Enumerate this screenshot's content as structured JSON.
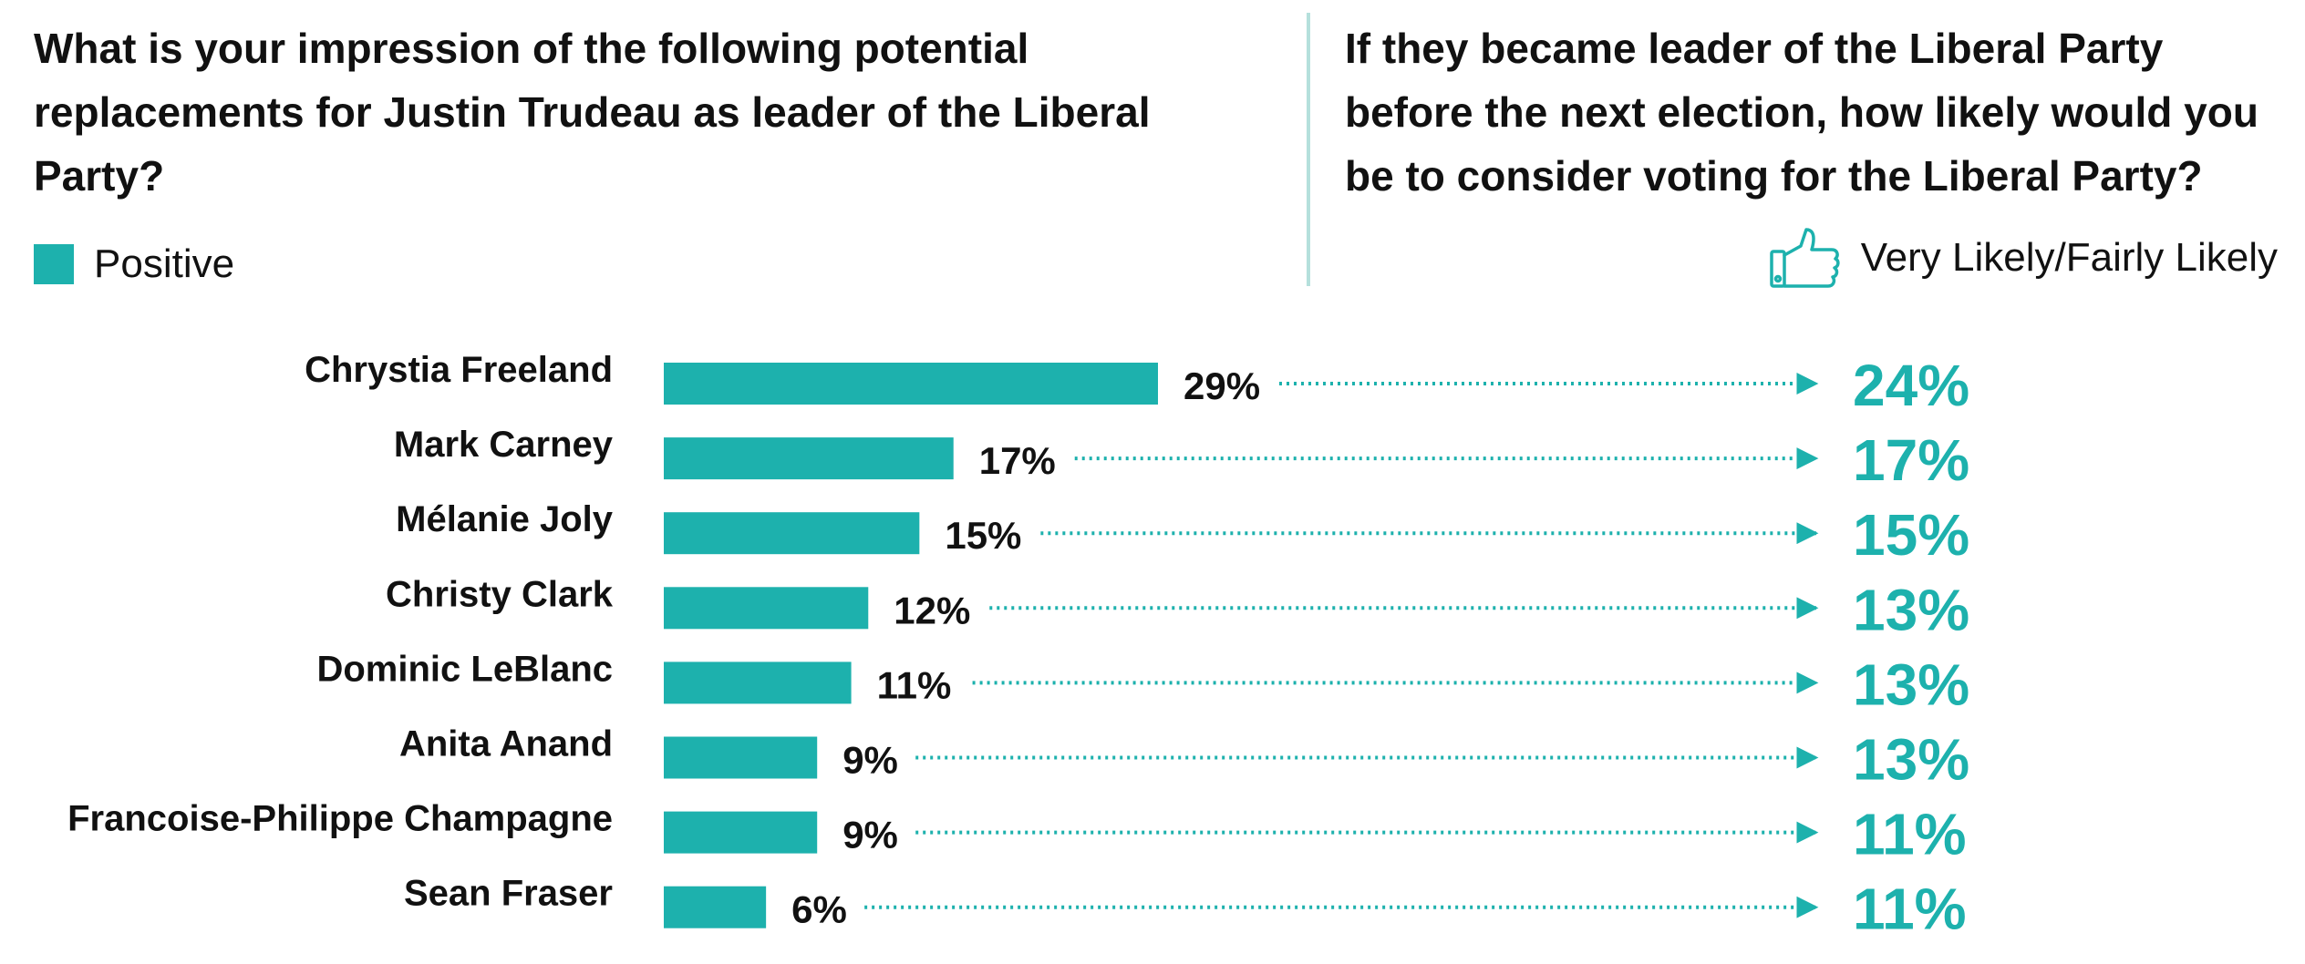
{
  "chart_data": {
    "type": "bar",
    "orientation": "horizontal",
    "left_question": "What is your impression of the following potential replacements for Justin Trudeau as leader of the Liberal Party?",
    "right_question": "If they became leader of the Liberal Party before the next election, how likely would you be to consider voting for the Liberal Party?",
    "left_legend": "Positive",
    "right_legend": "Very Likely/Fairly Likely",
    "categories": [
      "Chrystia Freeland",
      "Mark Carney",
      "Mélanie Joly",
      "Christy Clark",
      "Dominic LeBlanc",
      "Anita Anand",
      "Francoise-Philippe Champagne",
      "Sean Fraser"
    ],
    "series": [
      {
        "values": [
          29,
          17,
          15,
          12,
          11,
          9,
          9,
          6
        ]
      },
      {
        "values": [
          24,
          17,
          15,
          13,
          13,
          13,
          11,
          11
        ]
      }
    ],
    "value_suffix": "%",
    "xlim": [
      0,
      29
    ],
    "grid": false
  },
  "colors": {
    "bar": "#1db1ad",
    "accent_text": "#1db1ad",
    "divider": "#b5e0dc"
  },
  "icons": {
    "right_legend_icon": "thumbs-up-icon"
  }
}
